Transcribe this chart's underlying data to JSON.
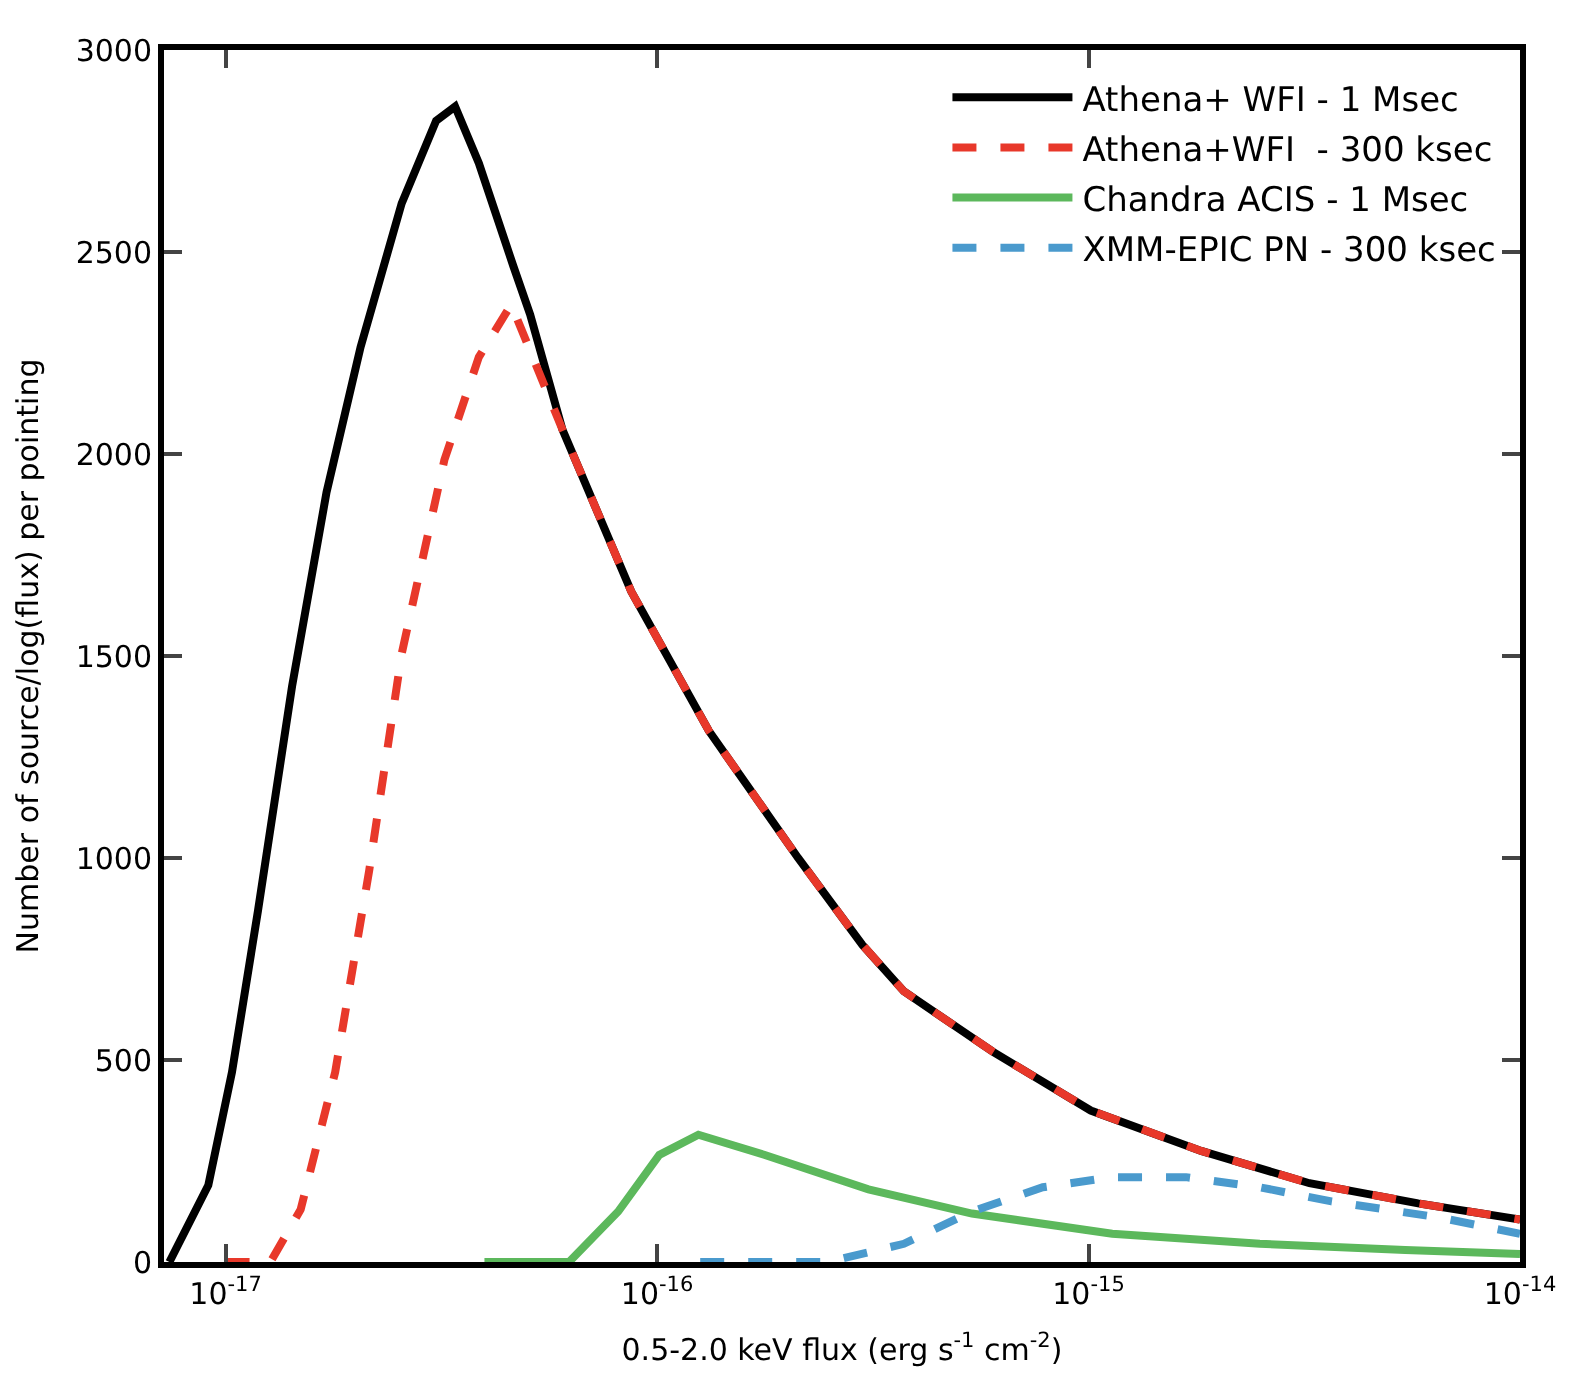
{
  "chart_data": {
    "type": "line",
    "xlabel": "0.5-2.0 keV flux (erg s$^{-1}$ cm$^{-2}$)",
    "ylabel": "Number of source/log(flux) per pointing",
    "log": "x",
    "xlim": [
      7.2e-18,
      1e-14
    ],
    "ylim": [
      0,
      3000
    ],
    "xticks": [
      {
        "value": 1e-17,
        "label": "10$^{-17}$"
      },
      {
        "value": 1e-16,
        "label": "10$^{-16}$"
      },
      {
        "value": 1e-15,
        "label": "10$^{-15}$"
      },
      {
        "value": 1e-14,
        "label": "10$^{-14}$"
      }
    ],
    "yticks": [
      0,
      500,
      1000,
      1500,
      2000,
      2500,
      3000
    ],
    "legend": "top right",
    "marker": "none",
    "series": [
      {
        "name": "Athena+ WFI - 1 Msec",
        "color": "#000000",
        "line_style": "solid",
        "x": [
          7.41e-18,
          9.12e-18,
          1.035e-17,
          1.189e-17,
          1.426e-17,
          1.714e-17,
          2.056e-17,
          2.559e-17,
          3.076e-17,
          3.404e-17,
          3.864e-17,
          4.645e-17,
          5.082e-17,
          6.039e-17,
          8.71e-17,
          1.318e-16,
          2.123e-16,
          2.992e-16,
          3.733e-16,
          6.01e-16,
          1.012e-15,
          1.824e-15,
          3.251e-15,
          5.808e-15,
          1e-14
        ],
        "values": [
          0,
          190,
          470,
          870,
          1425,
          1905,
          2265,
          2620,
          2825,
          2860,
          2720,
          2465,
          2345,
          2060,
          1660,
          1315,
          1000,
          785,
          670,
          520,
          375,
          275,
          195,
          145,
          105
        ]
      },
      {
        "name": "Athena+WFI  - 300 ksec",
        "color": "#e8382a",
        "line_style": "dashed",
        "x": [
          1e-17,
          1.271e-17,
          1.493e-17,
          1.795e-17,
          2.153e-17,
          2.559e-17,
          3.214e-17,
          3.864e-17,
          4.592e-17,
          6.039e-17,
          8.71e-17,
          1.318e-16,
          2.123e-16,
          2.992e-16,
          3.733e-16,
          6.01e-16,
          1.012e-15,
          1.824e-15,
          3.251e-15,
          5.808e-15,
          1e-14
        ],
        "values": [
          0,
          0,
          130,
          470,
          970,
          1505,
          1985,
          2240,
          2370,
          2060,
          1660,
          1315,
          1000,
          785,
          670,
          520,
          375,
          275,
          195,
          145,
          105
        ]
      },
      {
        "name": "Chandra ACIS - 1 Msec",
        "color": "#5cb85c",
        "line_style": "solid",
        "x": [
          3.981e-17,
          6.252e-17,
          8.128e-17,
          1.012e-16,
          1.247e-16,
          1.778e-16,
          3.09e-16,
          5.37e-16,
          1.135e-15,
          2.495e-15,
          5.42e-15,
          1e-14
        ],
        "values": [
          0,
          0,
          125,
          265,
          315,
          265,
          180,
          120,
          70,
          45,
          30,
          20
        ]
      },
      {
        "name": "XMM-EPIC PN - 300 ksec",
        "color": "#4a9acd",
        "line_style": "dashed",
        "x": [
          1.259e-16,
          2.477e-16,
          3.733e-16,
          5.37e-16,
          7.834e-16,
          1.135e-15,
          1.683e-15,
          2.495e-15,
          3.656e-15,
          6.516e-15,
          1e-14
        ],
        "values": [
          0,
          0,
          45,
          125,
          185,
          210,
          210,
          185,
          150,
          110,
          70
        ]
      }
    ]
  }
}
